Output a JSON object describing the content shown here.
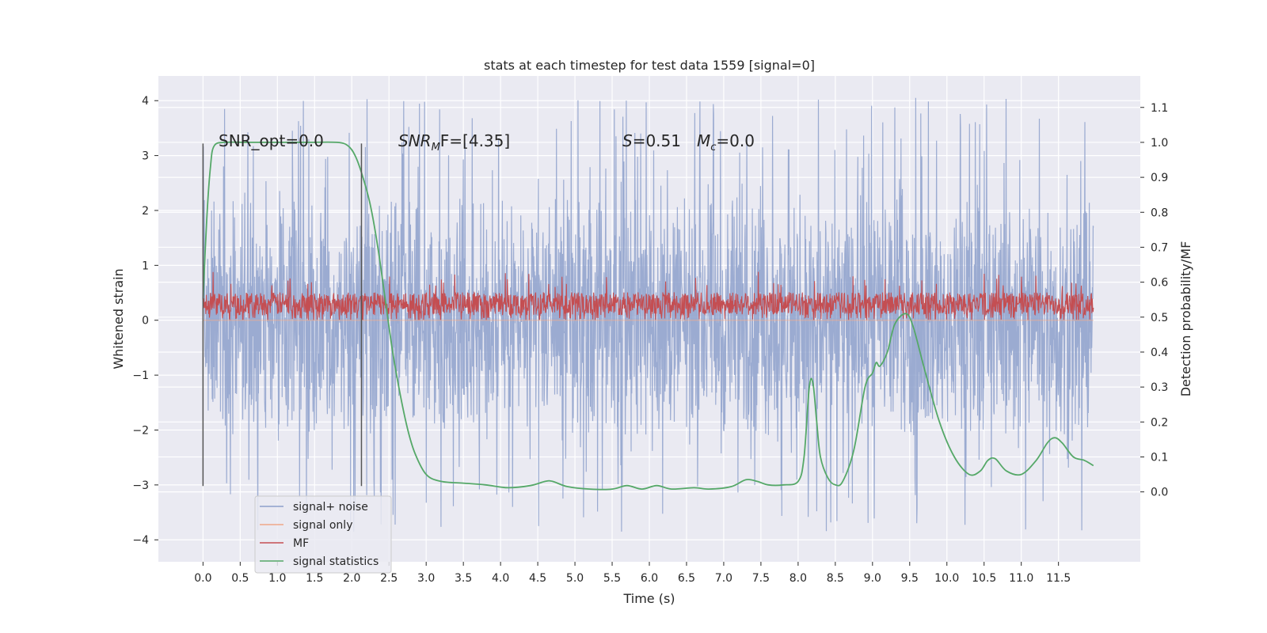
{
  "chart_data": {
    "type": "line",
    "title": "stats at each timestep for test data 1559 [signal=0]",
    "xlabel": "Time (s)",
    "ylabel": "Whitened strain",
    "ylabel_right": "Detection probability/MF",
    "xlim": [
      -0.6,
      12.6
    ],
    "ylim": [
      -4.4,
      4.45
    ],
    "ylim_right": [
      -0.2,
      1.19
    ],
    "x_ticks": [
      "0.0",
      "0.5",
      "1.0",
      "1.5",
      "2.0",
      "2.5",
      "3.0",
      "3.5",
      "4.0",
      "4.5",
      "5.0",
      "5.5",
      "6.0",
      "6.5",
      "7.0",
      "7.5",
      "8.0",
      "8.5",
      "9.0",
      "9.5",
      "10.0",
      "10.5",
      "11.0",
      "11.5"
    ],
    "y_ticks": [
      "4",
      "3",
      "2",
      "1",
      "0",
      "−1",
      "−2",
      "−3",
      "−4"
    ],
    "y_ticks_right": [
      "1.1",
      "1.0",
      "0.9",
      "0.8",
      "0.7",
      "0.6",
      "0.5",
      "0.4",
      "0.3",
      "0.2",
      "0.1",
      "0.0"
    ],
    "grid": true,
    "legend_position": "lower-left",
    "annotations": {
      "snr_opt": "SNR_opt=0.0",
      "snr_mf_base": "SNR",
      "snr_mf_sub": "M",
      "snr_mf_rest": "F=[4.35]",
      "s_base": "S",
      "s_rest": "=0.51",
      "mc_base": "M",
      "mc_sub": "c",
      "mc_rest": "=0.0"
    },
    "vlines": [
      0.0,
      2.13
    ],
    "series": [
      {
        "name": "signal+ noise",
        "color": "#8da0cb",
        "axis": "left",
        "x_range": [
          0.0,
          11.97
        ],
        "typical_envelope": [
          -1.2,
          1.35
        ],
        "max": 4.1,
        "min": -3.9
      },
      {
        "name": "signal only",
        "color": "#f0a888",
        "axis": "left",
        "x": [
          0.0,
          11.97
        ],
        "y": [
          0.0,
          0.0
        ]
      },
      {
        "name": "MF",
        "color": "#c44e52",
        "axis": "left",
        "x_range": [
          0.0,
          11.97
        ],
        "band": [
          0.0,
          0.6
        ],
        "max": 0.9
      },
      {
        "name": "signal statistics",
        "color": "#55a868",
        "axis": "right",
        "x": [
          0.0,
          0.05,
          0.1,
          0.15,
          0.3,
          0.6,
          1.0,
          1.4,
          1.8,
          1.95,
          2.05,
          2.15,
          2.25,
          2.35,
          2.45,
          2.55,
          2.65,
          2.75,
          2.85,
          3.0,
          3.2,
          3.5,
          3.8,
          4.1,
          4.4,
          4.6,
          4.7,
          4.9,
          5.2,
          5.5,
          5.7,
          5.9,
          6.1,
          6.3,
          6.6,
          6.8,
          7.1,
          7.3,
          7.45,
          7.6,
          7.8,
          8.0,
          8.08,
          8.15,
          8.2,
          8.25,
          8.3,
          8.4,
          8.5,
          8.6,
          8.75,
          8.9,
          9.0,
          9.05,
          9.1,
          9.2,
          9.3,
          9.45,
          9.55,
          9.7,
          9.9,
          10.1,
          10.3,
          10.45,
          10.55,
          10.65,
          10.8,
          11.0,
          11.2,
          11.35,
          11.45,
          11.55,
          11.7,
          11.85,
          11.97
        ],
        "y": [
          0.55,
          0.78,
          0.93,
          0.99,
          1.0,
          1.0,
          1.0,
          1.0,
          1.0,
          0.99,
          0.96,
          0.9,
          0.82,
          0.7,
          0.55,
          0.4,
          0.28,
          0.18,
          0.11,
          0.05,
          0.03,
          0.025,
          0.02,
          0.012,
          0.018,
          0.03,
          0.03,
          0.015,
          0.008,
          0.008,
          0.018,
          0.008,
          0.018,
          0.008,
          0.012,
          0.008,
          0.015,
          0.035,
          0.03,
          0.02,
          0.02,
          0.03,
          0.1,
          0.3,
          0.31,
          0.2,
          0.1,
          0.04,
          0.02,
          0.03,
          0.12,
          0.3,
          0.34,
          0.37,
          0.36,
          0.4,
          0.48,
          0.51,
          0.47,
          0.35,
          0.2,
          0.1,
          0.05,
          0.06,
          0.09,
          0.095,
          0.06,
          0.05,
          0.09,
          0.14,
          0.155,
          0.14,
          0.1,
          0.09,
          0.075
        ]
      }
    ]
  }
}
